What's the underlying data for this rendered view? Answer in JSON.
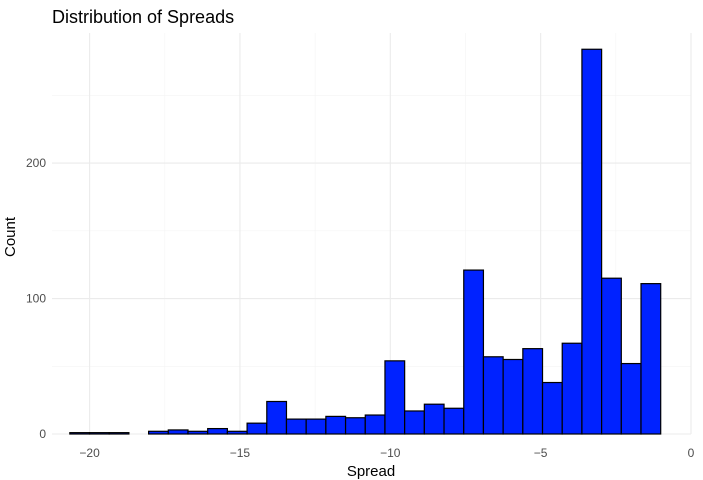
{
  "chart_data": {
    "type": "bar",
    "title": "Distribution of Spreads",
    "xlabel": "Spread",
    "ylabel": "Count",
    "xlim": [
      -21.25,
      0
    ],
    "ylim": [
      0,
      296
    ],
    "x_ticks": [
      -20,
      -15,
      -10,
      -5,
      0
    ],
    "x_tick_labels": [
      "−20",
      "−15",
      "−10",
      "−5",
      "0"
    ],
    "x_minor_ticks": [
      -17.5,
      -12.5,
      -7.5,
      -2.5
    ],
    "y_ticks": [
      0,
      100,
      200
    ],
    "y_tick_labels": [
      "0",
      "100",
      "200"
    ],
    "y_minor_ticks": [
      50,
      150,
      250
    ],
    "bin_width": 0.655,
    "bins": [
      {
        "x": -20.33,
        "count": 1
      },
      {
        "x": -19.675,
        "count": 1
      },
      {
        "x": -19.02,
        "count": 1
      },
      {
        "x": -18.365,
        "count": 0
      },
      {
        "x": -17.71,
        "count": 2
      },
      {
        "x": -17.055,
        "count": 3
      },
      {
        "x": -16.4,
        "count": 2
      },
      {
        "x": -15.745,
        "count": 4
      },
      {
        "x": -15.09,
        "count": 2
      },
      {
        "x": -14.435,
        "count": 8
      },
      {
        "x": -13.78,
        "count": 24
      },
      {
        "x": -13.125,
        "count": 11
      },
      {
        "x": -12.47,
        "count": 11
      },
      {
        "x": -11.815,
        "count": 13
      },
      {
        "x": -11.16,
        "count": 12
      },
      {
        "x": -10.505,
        "count": 14
      },
      {
        "x": -9.85,
        "count": 54
      },
      {
        "x": -9.195,
        "count": 17
      },
      {
        "x": -8.54,
        "count": 22
      },
      {
        "x": -7.885,
        "count": 19
      },
      {
        "x": -7.23,
        "count": 121
      },
      {
        "x": -6.575,
        "count": 57
      },
      {
        "x": -5.92,
        "count": 55
      },
      {
        "x": -5.265,
        "count": 63
      },
      {
        "x": -4.61,
        "count": 38
      },
      {
        "x": -3.955,
        "count": 67
      },
      {
        "x": -3.3,
        "count": 284
      },
      {
        "x": -2.645,
        "count": 115
      },
      {
        "x": -1.99,
        "count": 52
      },
      {
        "x": -1.335,
        "count": 111
      }
    ],
    "fill_color": "#0022ff",
    "outline_color": "#000000",
    "grid": true,
    "legend": "none"
  }
}
